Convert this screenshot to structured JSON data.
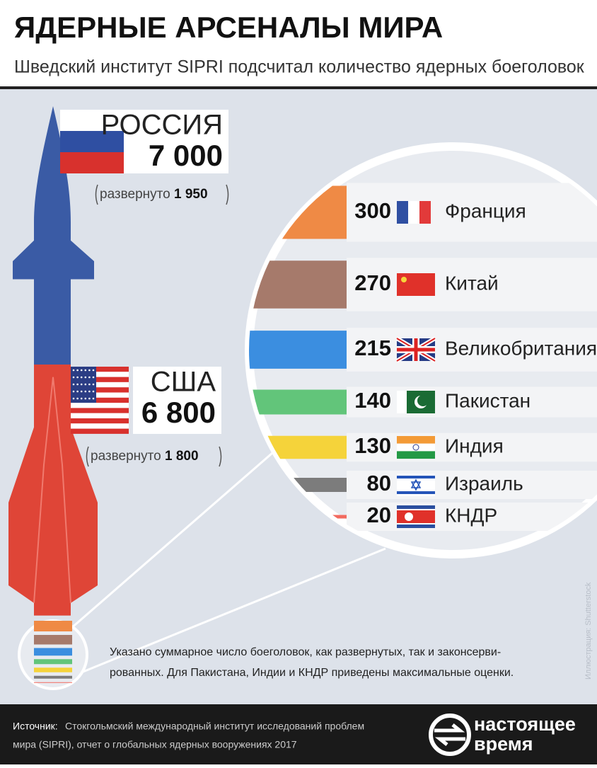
{
  "header": {
    "title": "ЯДЕРНЫЕ АРСЕНАЛЫ МИРА",
    "subtitle": "Шведский институт SIPRI подсчитал количество ядерных боеголовок"
  },
  "chart_data": {
    "type": "bar",
    "categories": [
      "РОССИЯ",
      "США",
      "Франция",
      "Китай",
      "Великобритания",
      "Пакистан",
      "Индия",
      "Израиль",
      "КНДР"
    ],
    "values": [
      7000,
      6800,
      300,
      270,
      215,
      140,
      130,
      80,
      20
    ],
    "value_labels": [
      "7 000",
      "6 800",
      "300",
      "270",
      "215",
      "140",
      "130",
      "80",
      "20"
    ],
    "colors": [
      "#3a5ba5",
      "#df4537",
      "#ef8a45",
      "#a67a6b",
      "#3b8ee0",
      "#62c57a",
      "#f5d33a",
      "#7c7c7c",
      "#f26a5f"
    ],
    "deployed": {
      "label": "развернуто",
      "values": [
        1950,
        1800
      ],
      "value_labels": [
        "1 950",
        "1 800"
      ]
    }
  },
  "note": [
    "Указано суммарное число боеголовок, как развернутых, так и законсерви-",
    "рованных. Для Пакистана, Индии и КНДР приведены максимальные оценки."
  ],
  "watermark": "Иллюстрация: Shutterstock",
  "source": {
    "label": "Источник:",
    "lines": [
      "Стокгольмский международный институт исследований проблем",
      "мира (SIPRI), отчет о глобальных ядерных вооружениях 2017"
    ]
  },
  "logo": [
    "настоящее",
    "время"
  ]
}
